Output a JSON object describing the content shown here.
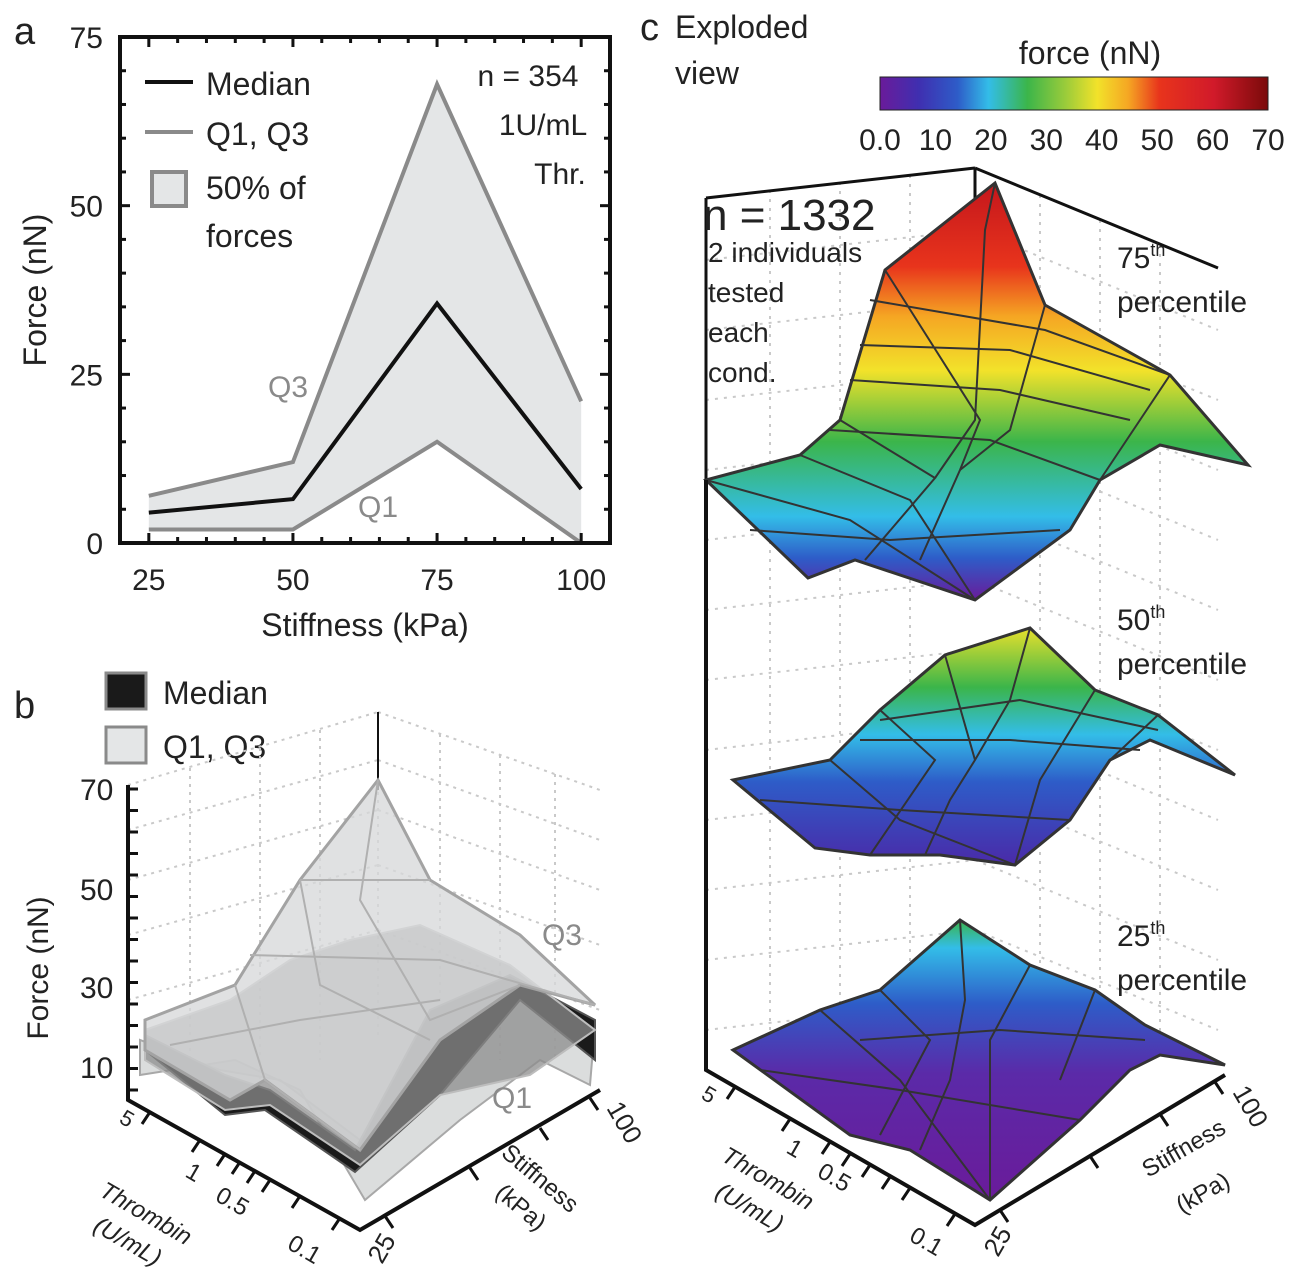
{
  "chart_data": [
    {
      "panel_label": "a",
      "type": "line",
      "xlabel": "Stiffness (kPa)",
      "ylabel": "Force (nN)",
      "x": [
        25,
        50,
        75,
        100
      ],
      "xticks": [
        "25",
        "50",
        "75",
        "100"
      ],
      "yticks": [
        "0",
        "25",
        "50",
        "75"
      ],
      "ylim": [
        0,
        75
      ],
      "xlim": [
        20,
        105
      ],
      "series": [
        {
          "name": "Median",
          "values": [
            4.5,
            6.5,
            35.5,
            8
          ],
          "color": "#111111"
        },
        {
          "name": "Q1",
          "values": [
            2,
            2,
            15,
            0
          ],
          "color": "#8a8a8a"
        },
        {
          "name": "Q3",
          "values": [
            7,
            12,
            68,
            21
          ],
          "color": "#8a8a8a"
        }
      ],
      "band_fill": "#e4e6e7",
      "legend": [
        "Median",
        "Q1, Q3",
        "50% of",
        "forces"
      ],
      "annotations": [
        "n = 354",
        "1U/mL",
        "Thr.",
        "Q3",
        "Q1"
      ]
    },
    {
      "panel_label": "b",
      "type": "surface",
      "zlabel": "Force (nN)",
      "xlabel_line1": "Thrombin",
      "xlabel_line2": "(U/mL)",
      "ylabel_line1": "Stiffness",
      "ylabel_line2": "(kPa)",
      "thrombin_ticks": [
        "5",
        "1",
        "0.5",
        "0.1"
      ],
      "stiffness_ticks": [
        "25",
        "100"
      ],
      "zticks": [
        "10",
        "30",
        "50",
        "70"
      ],
      "zlim": [
        0,
        70
      ],
      "legend": [
        "Median",
        "Q1, Q3"
      ],
      "annotations": [
        "Q3",
        "Q1"
      ],
      "series": [
        {
          "name": "Q3",
          "approx_peak": 70
        },
        {
          "name": "Median",
          "approx_peak": 35
        },
        {
          "name": "Q1",
          "approx_peak": 15
        }
      ]
    },
    {
      "panel_label": "c",
      "type": "surface",
      "title_line1": "Exploded",
      "title_line2": "view",
      "colorbar_title": "force (nN)",
      "colorbar_ticks": [
        "0.0",
        "10",
        "20",
        "30",
        "40",
        "50",
        "60",
        "70"
      ],
      "colorbar_range": [
        0,
        70
      ],
      "colormap": [
        "#6a1b9a",
        "#3f2fb0",
        "#2e5cc8",
        "#33bde8",
        "#3bb54a",
        "#9ccc3a",
        "#f2e22a",
        "#f5a623",
        "#e8341c",
        "#d11a2a",
        "#7a0a0a"
      ],
      "annotations": [
        "n = 1332",
        "2 individuals",
        "tested",
        "each",
        "cond."
      ],
      "layers": [
        {
          "label_num": "75",
          "label_sup": "th",
          "label_word": "percentile",
          "approx_peak": 68
        },
        {
          "label_num": "50",
          "label_sup": "th",
          "label_word": "percentile",
          "approx_peak": 36
        },
        {
          "label_num": "25",
          "label_sup": "th",
          "label_word": "percentile",
          "approx_peak": 18
        }
      ],
      "xlabel_line1": "Thrombin",
      "xlabel_line2": "(U/mL)",
      "ylabel_line1": "Stiffness",
      "ylabel_line2": "(kPa)",
      "thrombin_ticks": [
        "5",
        "1",
        "0.5",
        "0.1"
      ],
      "stiffness_ticks": [
        "25",
        "100"
      ]
    }
  ]
}
